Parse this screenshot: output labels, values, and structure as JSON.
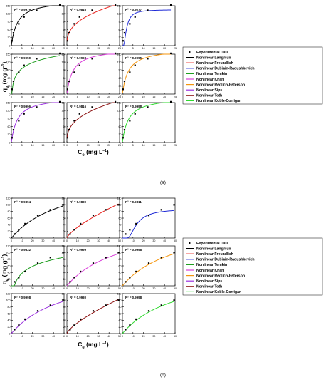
{
  "figure": {
    "ylabel_main": "q",
    "ylabel_sub": "e",
    "ylabel_unit": " (mg g",
    "ylabel_unit_sup": "−1",
    "ylabel_close": ")",
    "xlabel_main": "C",
    "xlabel_sub": "e",
    "xlabel_unit": " (mg L",
    "xlabel_unit_sup": "−1",
    "xlabel_close": ")"
  },
  "legend_items": [
    {
      "label": "Experimental Data",
      "color": "#000000",
      "kind": "marker"
    },
    {
      "label": "Nonlinear Langmuir",
      "color": "#000000",
      "kind": "line"
    },
    {
      "label": "Nonlinear Freundlich",
      "color": "#e8211c",
      "kind": "line"
    },
    {
      "label": "Nonlinear Dubinin-Radushkevich",
      "color": "#1f2ad6",
      "kind": "line"
    },
    {
      "label": "Nonlinear Temkin",
      "color": "#1e9e1e",
      "kind": "line"
    },
    {
      "label": "Nonlinear Khan",
      "color": "#d93fd9",
      "kind": "line"
    },
    {
      "label": "Nonlinear Redlich-Peterson",
      "color": "#f5950c",
      "kind": "line"
    },
    {
      "label": "Nonlinear Sips",
      "color": "#9b32e0",
      "kind": "line"
    },
    {
      "label": "Nonlinear Toth",
      "color": "#8b1010",
      "kind": "line"
    },
    {
      "label": "Nonlinear Koble-Corrigan",
      "color": "#2fd92f",
      "kind": "line"
    }
  ],
  "chart_data": [
    {
      "type": "scatter",
      "label": "(a)",
      "xlim": [
        0,
        25
      ],
      "ylim": [
        0,
        150
      ],
      "xticks": [
        0,
        5,
        10,
        15,
        20,
        25
      ],
      "yticks": [
        0,
        30,
        60,
        90,
        120,
        150
      ],
      "x": [
        0.3,
        1,
        3.5,
        6,
        12,
        23
      ],
      "y": [
        18,
        48,
        82,
        108,
        133,
        153
      ],
      "panels": [
        {
          "model": "Nonlinear Langmuir",
          "r2": "R² = 0.9979",
          "color": "#000000",
          "form": "lang",
          "p": [
            172,
            0.35
          ]
        },
        {
          "model": "Nonlinear Freundlich",
          "r2": "R² = 0.9816",
          "color": "#e8211c",
          "form": "freund",
          "p": [
            48,
            0.37
          ]
        },
        {
          "model": "Nonlinear Dubinin-Radushkevich",
          "r2": "R² = 0.9277",
          "color": "#1f2ad6",
          "form": "dr",
          "p": [
            135,
            4.5
          ]
        },
        {
          "model": "Nonlinear Temkin",
          "r2": "R² = 0.9950",
          "color": "#1e9e1e",
          "form": "temkin",
          "p": [
            32,
            4
          ]
        },
        {
          "model": "Nonlinear Khan",
          "r2": "R² = 0.9993",
          "color": "#d93fd9",
          "form": "lang",
          "p": [
            172,
            0.35
          ]
        },
        {
          "model": "Nonlinear Redlich-Peterson",
          "r2": "R² = 0.9995",
          "color": "#f5950c",
          "form": "lang",
          "p": [
            172,
            0.35
          ]
        },
        {
          "model": "Nonlinear Sips",
          "r2": "R² = 0.9996",
          "color": "#9b32e0",
          "form": "lang",
          "p": [
            172,
            0.35
          ]
        },
        {
          "model": "Nonlinear Toth",
          "r2": "R² = 0.9816",
          "color": "#8b1010",
          "form": "freund",
          "p": [
            48,
            0.37
          ]
        },
        {
          "model": "Nonlinear Koble-Corrigan",
          "r2": "R² = 0.9998",
          "color": "#2fd92f",
          "form": "lang",
          "p": [
            172,
            0.35
          ]
        }
      ]
    },
    {
      "type": "scatter",
      "label": "(b)",
      "xlim": [
        0,
        50
      ],
      "ylim": [
        0,
        120
      ],
      "xticks": [
        0,
        10,
        20,
        30,
        40,
        50
      ],
      "yticks": [
        0,
        20,
        40,
        60,
        80,
        100,
        120
      ],
      "x": [
        3,
        7,
        13,
        25,
        37,
        49
      ],
      "y": [
        12,
        25,
        43,
        68,
        85,
        100
      ],
      "panels": [
        {
          "model": "Nonlinear Langmuir",
          "r2": "R² = 0.9894",
          "color": "#000000",
          "form": "lang",
          "p": [
            200,
            0.019
          ]
        },
        {
          "model": "Nonlinear Freundlich",
          "r2": "R² = 0.9880",
          "color": "#e8211c",
          "form": "freund",
          "p": [
            6,
            0.73
          ]
        },
        {
          "model": "Nonlinear Dubinin-Radushkevich",
          "r2": "R² = 0.9311",
          "color": "#1f2ad6",
          "form": "dr",
          "p": [
            88,
            150
          ]
        },
        {
          "model": "Nonlinear Temkin",
          "r2": "R² = 0.9832",
          "color": "#1e9e1e",
          "form": "temkin",
          "p": [
            30,
            0.35
          ]
        },
        {
          "model": "Nonlinear Khan",
          "r2": "R² = 0.9999",
          "color": "#d93fd9",
          "form": "lang",
          "p": [
            200,
            0.019
          ]
        },
        {
          "model": "Nonlinear Redlich-Peterson",
          "r2": "R² = 0.9998",
          "color": "#f5950c",
          "form": "lang",
          "p": [
            200,
            0.019
          ]
        },
        {
          "model": "Nonlinear Sips",
          "r2": "R² = 0.9998",
          "color": "#9b32e0",
          "form": "lang",
          "p": [
            200,
            0.019
          ]
        },
        {
          "model": "Nonlinear Toth",
          "r2": "R² = 0.9980",
          "color": "#8b1010",
          "form": "freund",
          "p": [
            6,
            0.73
          ]
        },
        {
          "model": "Nonlinear Koble-Corrigan",
          "r2": "R² = 0.9998",
          "color": "#2fd92f",
          "form": "lang",
          "p": [
            200,
            0.019
          ]
        }
      ]
    }
  ]
}
